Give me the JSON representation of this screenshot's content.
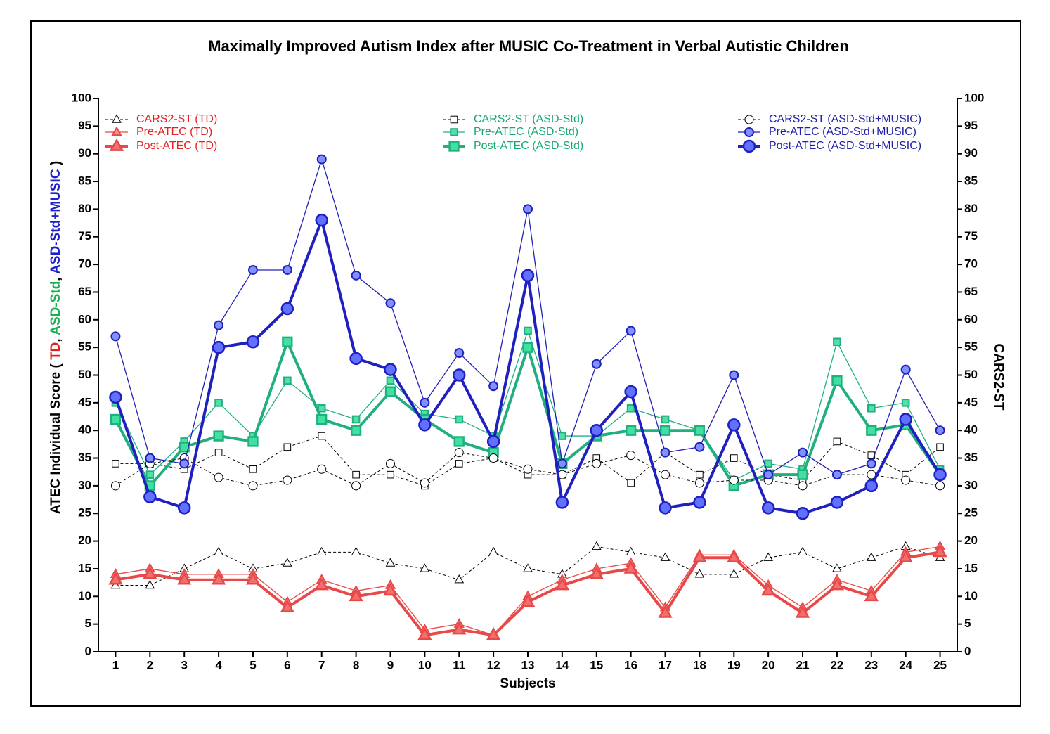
{
  "chart_data": {
    "type": "line",
    "title": "Maximally Improved Autism Index after MUSIC Co-Treatment in Verbal Autistic Children",
    "xlabel": "Subjects",
    "ylabel": [
      {
        "text": "ATEC Individual Score ( ",
        "color": "#000000"
      },
      {
        "text": "TD",
        "color": "#e52020"
      },
      {
        "text": ", ",
        "color": "#000000"
      },
      {
        "text": "ASD-Std",
        "color": "#18b050"
      },
      {
        "text": ", ",
        "color": "#000000"
      },
      {
        "text": "ASD-Std+MUSIC",
        "color": "#2020c8"
      },
      {
        "text": " )",
        "color": "#000000"
      }
    ],
    "y2label": "CARS2-ST",
    "x": [
      1,
      2,
      3,
      4,
      5,
      6,
      7,
      8,
      9,
      10,
      11,
      12,
      13,
      14,
      15,
      16,
      17,
      18,
      19,
      20,
      21,
      22,
      23,
      24,
      25
    ],
    "xlim": [
      0.5,
      25.5
    ],
    "xticks": [
      1,
      2,
      3,
      4,
      5,
      6,
      7,
      8,
      9,
      10,
      11,
      12,
      13,
      14,
      15,
      16,
      17,
      18,
      19,
      20,
      21,
      22,
      23,
      24,
      25
    ],
    "ylim": [
      0,
      100
    ],
    "yticks": [
      0,
      5,
      10,
      15,
      20,
      25,
      30,
      35,
      40,
      45,
      50,
      55,
      60,
      65,
      70,
      75,
      80,
      85,
      90,
      95,
      100
    ],
    "y2lim": [
      0,
      100
    ],
    "y2ticks": [
      0,
      5,
      10,
      15,
      20,
      25,
      30,
      35,
      40,
      45,
      50,
      55,
      60,
      65,
      70,
      75,
      80,
      85,
      90,
      95,
      100
    ],
    "series": [
      {
        "name": "CARS2-ST (TD)",
        "legend_color": "#e52020",
        "color": "#000000",
        "fill": "#ffffff",
        "marker": "triangle",
        "line": "dashed",
        "axis": "y2",
        "values": [
          12,
          12,
          15,
          18,
          15,
          16,
          18,
          18,
          16,
          15,
          13,
          18,
          15,
          14,
          19,
          18,
          17,
          14,
          14,
          17,
          18,
          15,
          17,
          19,
          17
        ]
      },
      {
        "name": "Pre-ATEC (TD)",
        "legend_color": "#e52020",
        "color": "#e84848",
        "fill": "#f49090",
        "marker": "triangle",
        "line": "thin",
        "values": [
          14,
          15,
          14,
          14,
          14,
          9,
          13,
          11,
          12,
          4,
          5,
          3,
          10,
          13,
          15,
          16,
          8,
          17.5,
          17.5,
          12,
          8,
          13,
          11,
          18,
          19
        ]
      },
      {
        "name": "Post-ATEC (TD)",
        "legend_color": "#e52020",
        "color": "#e84848",
        "fill": "#f07070",
        "marker": "triangle",
        "line": "thick",
        "values": [
          13,
          14,
          13,
          13,
          13,
          8,
          12,
          10,
          11,
          3,
          4,
          3,
          9,
          12,
          14,
          15,
          7,
          17,
          17,
          11,
          7,
          12,
          10,
          17,
          18
        ]
      },
      {
        "name": "CARS2-ST (ASD-Std)",
        "legend_color": "#18a870",
        "color": "#000000",
        "fill": "#ffffff",
        "marker": "square",
        "line": "dashed",
        "axis": "y2",
        "values": [
          34,
          34,
          33,
          36,
          33,
          37,
          39,
          32,
          32,
          30,
          34,
          35,
          32,
          32,
          35,
          30.5,
          36,
          32,
          35,
          32,
          31,
          38,
          35.5,
          32,
          37
        ]
      },
      {
        "name": "Pre-ATEC (ASD-Std)",
        "legend_color": "#18a870",
        "color": "#20b080",
        "fill": "#50e0a8",
        "marker": "square",
        "line": "thin",
        "values": [
          45,
          32,
          38,
          45,
          39,
          49,
          44,
          42,
          49,
          43,
          42,
          39,
          58,
          39,
          39,
          44,
          42,
          40,
          31,
          34,
          33,
          56,
          44,
          45,
          33
        ]
      },
      {
        "name": "Post-ATEC (ASD-Std)",
        "legend_color": "#18a870",
        "color": "#20b080",
        "fill": "#40e0a0",
        "marker": "square",
        "line": "thick",
        "values": [
          42,
          30,
          37,
          39,
          38,
          56,
          42,
          40,
          47,
          42,
          38,
          36,
          55,
          34,
          39,
          40,
          40,
          40,
          30,
          32,
          32,
          49,
          40,
          41,
          32
        ]
      },
      {
        "name": "CARS2-ST (ASD-Std+MUSIC)",
        "legend_color": "#2020a8",
        "color": "#000000",
        "fill": "#ffffff",
        "marker": "circle",
        "line": "dashed",
        "axis": "y2",
        "values": [
          30,
          34,
          35,
          31.5,
          30,
          31,
          33,
          30,
          34,
          30.5,
          36,
          35,
          33,
          32,
          34,
          35.5,
          32,
          30.5,
          31,
          31,
          30,
          32,
          32,
          31,
          30
        ]
      },
      {
        "name": "Pre-ATEC (ASD-Std+MUSIC)",
        "legend_color": "#2020a8",
        "color": "#2020b8",
        "fill": "#8090ff",
        "marker": "circle",
        "line": "thin",
        "values": [
          57,
          35,
          34,
          59,
          69,
          69,
          89,
          68,
          63,
          45,
          54,
          48,
          80,
          34,
          52,
          58,
          36,
          37,
          50,
          32,
          36,
          32,
          34,
          51,
          40
        ]
      },
      {
        "name": "Post-ATEC (ASD-Std+MUSIC)",
        "legend_color": "#2020a8",
        "color": "#2020c0",
        "fill": "#6070ff",
        "marker": "circle",
        "line": "thick",
        "values": [
          46,
          28,
          26,
          55,
          56,
          62,
          78,
          53,
          51,
          41,
          50,
          38,
          68,
          27,
          40,
          47,
          26,
          27,
          41,
          26,
          25,
          27,
          30,
          42,
          32
        ]
      }
    ]
  }
}
